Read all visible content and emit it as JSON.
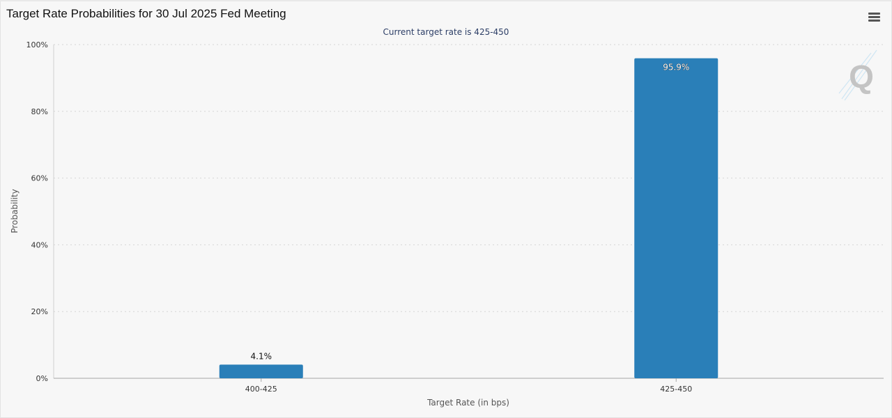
{
  "header": {
    "title": "Target Rate Probabilities for 30 Jul 2025 Fed Meeting",
    "menu_icon": "hamburger-menu-icon"
  },
  "watermark": {
    "letter": "Q"
  },
  "colors": {
    "bar": "#2a7fb8",
    "grid": "#d6d6d6",
    "axis": "#a6a6a6",
    "text": "#333333",
    "subtitle": "#2c3e66"
  },
  "chart_data": {
    "type": "bar",
    "title": "Target Rate Probabilities for 30 Jul 2025 Fed Meeting",
    "subtitle": "Current target rate is 425-450",
    "categories": [
      "400-425",
      "425-450"
    ],
    "values": [
      4.1,
      95.9
    ],
    "data_labels": [
      "4.1%",
      "95.9%"
    ],
    "xlabel": "Target Rate (in bps)",
    "ylabel": "Probability",
    "ylim": [
      0,
      100
    ],
    "yticks": [
      "0%",
      "20%",
      "40%",
      "60%",
      "80%",
      "100%"
    ],
    "ytick_values": [
      0,
      20,
      40,
      60,
      80,
      100
    ],
    "grid": true,
    "legend": "none"
  }
}
